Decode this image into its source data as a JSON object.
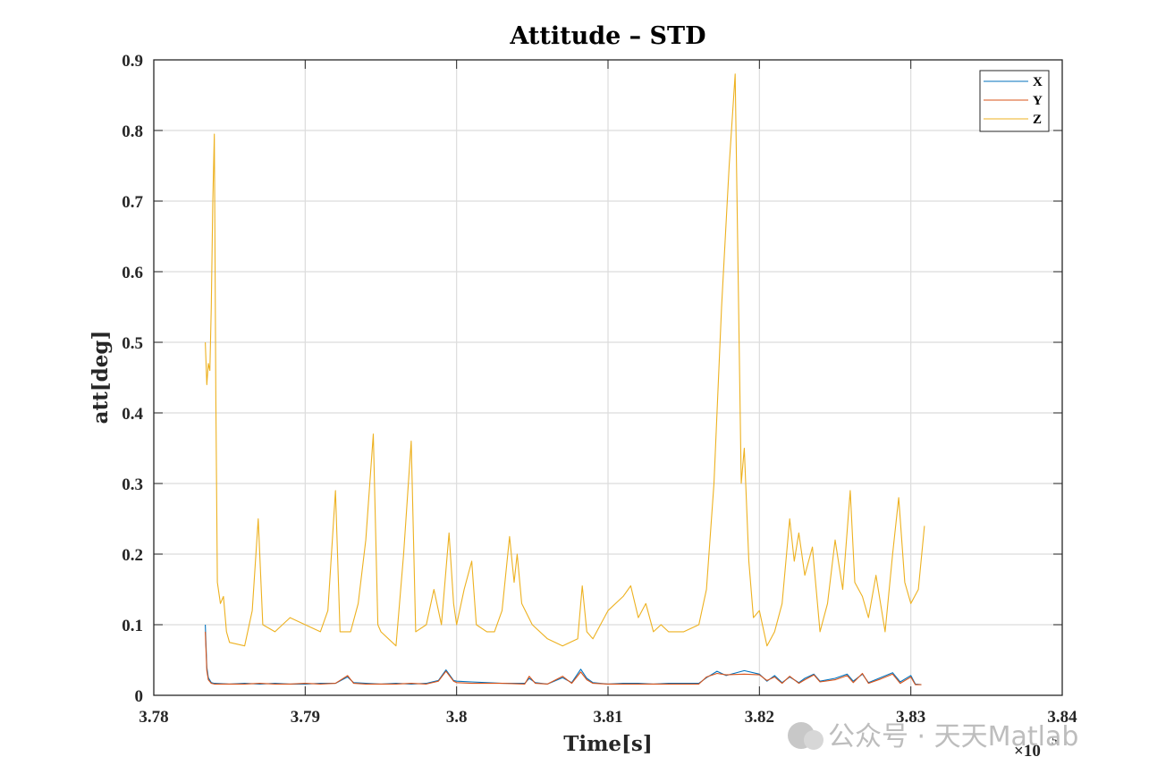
{
  "chart_data": {
    "type": "line",
    "title": "Attitude – STD",
    "xlabel": "Time[s]",
    "ylabel": "att[deg]",
    "x_exponent_label": "×10",
    "x_exponent_power": "5",
    "xlim": [
      3.78,
      3.84
    ],
    "ylim": [
      0,
      0.9
    ],
    "x_ticks": [
      "3.78",
      "3.79",
      "3.8",
      "3.81",
      "3.82",
      "3.83",
      "3.84"
    ],
    "y_ticks": [
      "0",
      "0.1",
      "0.2",
      "0.3",
      "0.4",
      "0.5",
      "0.6",
      "0.7",
      "0.8",
      "0.9"
    ],
    "grid": true,
    "legend_position": "top-right",
    "series": [
      {
        "name": "X",
        "color": "#0072BD",
        "points": [
          [
            3.7834,
            0.1
          ],
          [
            3.7835,
            0.04
          ],
          [
            3.7836,
            0.025
          ],
          [
            3.7838,
            0.018
          ],
          [
            3.784,
            0.017
          ],
          [
            3.785,
            0.016
          ],
          [
            3.786,
            0.017
          ],
          [
            3.787,
            0.016
          ],
          [
            3.788,
            0.017
          ],
          [
            3.789,
            0.016
          ],
          [
            3.79,
            0.016
          ],
          [
            3.791,
            0.017
          ],
          [
            3.792,
            0.017
          ],
          [
            3.7928,
            0.026
          ],
          [
            3.7932,
            0.018
          ],
          [
            3.794,
            0.017
          ],
          [
            3.795,
            0.016
          ],
          [
            3.796,
            0.017
          ],
          [
            3.797,
            0.016
          ],
          [
            3.798,
            0.017
          ],
          [
            3.7988,
            0.021
          ],
          [
            3.7993,
            0.036
          ],
          [
            3.7998,
            0.021
          ],
          [
            3.8,
            0.02
          ],
          [
            3.801,
            0.019
          ],
          [
            3.802,
            0.018
          ],
          [
            3.803,
            0.017
          ],
          [
            3.8045,
            0.017
          ],
          [
            3.8048,
            0.024
          ],
          [
            3.8052,
            0.018
          ],
          [
            3.806,
            0.016
          ],
          [
            3.807,
            0.025
          ],
          [
            3.8076,
            0.018
          ],
          [
            3.8082,
            0.037
          ],
          [
            3.8086,
            0.024
          ],
          [
            3.809,
            0.018
          ],
          [
            3.81,
            0.016
          ],
          [
            3.811,
            0.017
          ],
          [
            3.812,
            0.017
          ],
          [
            3.813,
            0.016
          ],
          [
            3.814,
            0.017
          ],
          [
            3.815,
            0.017
          ],
          [
            3.816,
            0.017
          ],
          [
            3.8165,
            0.025
          ],
          [
            3.8172,
            0.034
          ],
          [
            3.8178,
            0.028
          ],
          [
            3.819,
            0.035
          ],
          [
            3.82,
            0.03
          ],
          [
            3.8205,
            0.02
          ],
          [
            3.821,
            0.028
          ],
          [
            3.8215,
            0.018
          ],
          [
            3.822,
            0.026
          ],
          [
            3.8226,
            0.018
          ],
          [
            3.823,
            0.024
          ],
          [
            3.8236,
            0.03
          ],
          [
            3.824,
            0.02
          ],
          [
            3.825,
            0.024
          ],
          [
            3.8258,
            0.03
          ],
          [
            3.8262,
            0.02
          ],
          [
            3.8268,
            0.03
          ],
          [
            3.8272,
            0.018
          ],
          [
            3.828,
            0.025
          ],
          [
            3.8288,
            0.032
          ],
          [
            3.8293,
            0.019
          ],
          [
            3.83,
            0.028
          ],
          [
            3.8303,
            0.016
          ],
          [
            3.8307,
            0.015
          ]
        ]
      },
      {
        "name": "Y",
        "color": "#D95319",
        "points": [
          [
            3.7834,
            0.09
          ],
          [
            3.7835,
            0.035
          ],
          [
            3.7836,
            0.022
          ],
          [
            3.7838,
            0.017
          ],
          [
            3.784,
            0.016
          ],
          [
            3.785,
            0.016
          ],
          [
            3.786,
            0.016
          ],
          [
            3.787,
            0.017
          ],
          [
            3.788,
            0.016
          ],
          [
            3.789,
            0.016
          ],
          [
            3.79,
            0.017
          ],
          [
            3.791,
            0.016
          ],
          [
            3.792,
            0.017
          ],
          [
            3.7928,
            0.028
          ],
          [
            3.7932,
            0.017
          ],
          [
            3.794,
            0.016
          ],
          [
            3.795,
            0.016
          ],
          [
            3.796,
            0.016
          ],
          [
            3.797,
            0.017
          ],
          [
            3.798,
            0.016
          ],
          [
            3.7988,
            0.02
          ],
          [
            3.7993,
            0.034
          ],
          [
            3.7998,
            0.02
          ],
          [
            3.8,
            0.018
          ],
          [
            3.801,
            0.017
          ],
          [
            3.802,
            0.017
          ],
          [
            3.803,
            0.017
          ],
          [
            3.8045,
            0.016
          ],
          [
            3.8048,
            0.027
          ],
          [
            3.8052,
            0.017
          ],
          [
            3.806,
            0.016
          ],
          [
            3.807,
            0.027
          ],
          [
            3.8076,
            0.017
          ],
          [
            3.8082,
            0.033
          ],
          [
            3.8086,
            0.022
          ],
          [
            3.809,
            0.017
          ],
          [
            3.81,
            0.016
          ],
          [
            3.811,
            0.016
          ],
          [
            3.812,
            0.016
          ],
          [
            3.813,
            0.016
          ],
          [
            3.814,
            0.016
          ],
          [
            3.815,
            0.016
          ],
          [
            3.816,
            0.016
          ],
          [
            3.8165,
            0.026
          ],
          [
            3.8172,
            0.031
          ],
          [
            3.8178,
            0.029
          ],
          [
            3.819,
            0.03
          ],
          [
            3.82,
            0.029
          ],
          [
            3.8205,
            0.021
          ],
          [
            3.821,
            0.026
          ],
          [
            3.8215,
            0.017
          ],
          [
            3.822,
            0.027
          ],
          [
            3.8226,
            0.017
          ],
          [
            3.823,
            0.022
          ],
          [
            3.8236,
            0.029
          ],
          [
            3.824,
            0.019
          ],
          [
            3.825,
            0.022
          ],
          [
            3.8258,
            0.028
          ],
          [
            3.8262,
            0.018
          ],
          [
            3.8268,
            0.031
          ],
          [
            3.8272,
            0.017
          ],
          [
            3.828,
            0.023
          ],
          [
            3.8288,
            0.03
          ],
          [
            3.8293,
            0.017
          ],
          [
            3.83,
            0.026
          ],
          [
            3.8303,
            0.015
          ],
          [
            3.8307,
            0.015
          ]
        ]
      },
      {
        "name": "Z",
        "color": "#EDB120",
        "points": [
          [
            3.7834,
            0.5
          ],
          [
            3.7835,
            0.44
          ],
          [
            3.7836,
            0.47
          ],
          [
            3.7837,
            0.46
          ],
          [
            3.7838,
            0.55
          ],
          [
            3.7839,
            0.7
          ],
          [
            3.784,
            0.795
          ],
          [
            3.7841,
            0.42
          ],
          [
            3.7842,
            0.16
          ],
          [
            3.7844,
            0.13
          ],
          [
            3.7846,
            0.14
          ],
          [
            3.7848,
            0.09
          ],
          [
            3.785,
            0.075
          ],
          [
            3.786,
            0.07
          ],
          [
            3.7865,
            0.12
          ],
          [
            3.7869,
            0.25
          ],
          [
            3.7872,
            0.1
          ],
          [
            3.788,
            0.09
          ],
          [
            3.789,
            0.11
          ],
          [
            3.79,
            0.1
          ],
          [
            3.791,
            0.09
          ],
          [
            3.7915,
            0.12
          ],
          [
            3.792,
            0.29
          ],
          [
            3.7923,
            0.09
          ],
          [
            3.793,
            0.09
          ],
          [
            3.7935,
            0.13
          ],
          [
            3.794,
            0.22
          ],
          [
            3.7945,
            0.37
          ],
          [
            3.7948,
            0.1
          ],
          [
            3.795,
            0.09
          ],
          [
            3.796,
            0.07
          ],
          [
            3.7965,
            0.2
          ],
          [
            3.797,
            0.36
          ],
          [
            3.7973,
            0.09
          ],
          [
            3.798,
            0.1
          ],
          [
            3.7985,
            0.15
          ],
          [
            3.799,
            0.1
          ],
          [
            3.7995,
            0.23
          ],
          [
            3.7998,
            0.13
          ],
          [
            3.8,
            0.1
          ],
          [
            3.8005,
            0.15
          ],
          [
            3.801,
            0.19
          ],
          [
            3.8013,
            0.1
          ],
          [
            3.802,
            0.09
          ],
          [
            3.8025,
            0.09
          ],
          [
            3.803,
            0.12
          ],
          [
            3.8035,
            0.225
          ],
          [
            3.8038,
            0.16
          ],
          [
            3.804,
            0.2
          ],
          [
            3.8043,
            0.13
          ],
          [
            3.805,
            0.1
          ],
          [
            3.806,
            0.08
          ],
          [
            3.807,
            0.07
          ],
          [
            3.808,
            0.08
          ],
          [
            3.8083,
            0.155
          ],
          [
            3.8086,
            0.09
          ],
          [
            3.809,
            0.08
          ],
          [
            3.81,
            0.12
          ],
          [
            3.811,
            0.14
          ],
          [
            3.8115,
            0.155
          ],
          [
            3.812,
            0.11
          ],
          [
            3.8125,
            0.13
          ],
          [
            3.813,
            0.09
          ],
          [
            3.8135,
            0.1
          ],
          [
            3.814,
            0.09
          ],
          [
            3.815,
            0.09
          ],
          [
            3.816,
            0.1
          ],
          [
            3.8165,
            0.15
          ],
          [
            3.817,
            0.3
          ],
          [
            3.8175,
            0.55
          ],
          [
            3.818,
            0.75
          ],
          [
            3.8184,
            0.88
          ],
          [
            3.8188,
            0.3
          ],
          [
            3.819,
            0.35
          ],
          [
            3.8193,
            0.19
          ],
          [
            3.8196,
            0.11
          ],
          [
            3.82,
            0.12
          ],
          [
            3.8205,
            0.07
          ],
          [
            3.821,
            0.09
          ],
          [
            3.8215,
            0.13
          ],
          [
            3.822,
            0.25
          ],
          [
            3.8223,
            0.19
          ],
          [
            3.8226,
            0.23
          ],
          [
            3.823,
            0.17
          ],
          [
            3.8235,
            0.21
          ],
          [
            3.824,
            0.09
          ],
          [
            3.8245,
            0.13
          ],
          [
            3.825,
            0.22
          ],
          [
            3.8255,
            0.15
          ],
          [
            3.826,
            0.29
          ],
          [
            3.8263,
            0.16
          ],
          [
            3.8268,
            0.14
          ],
          [
            3.8272,
            0.11
          ],
          [
            3.8277,
            0.17
          ],
          [
            3.8283,
            0.09
          ],
          [
            3.8288,
            0.2
          ],
          [
            3.8292,
            0.28
          ],
          [
            3.8296,
            0.16
          ],
          [
            3.83,
            0.13
          ],
          [
            3.8305,
            0.15
          ],
          [
            3.8309,
            0.24
          ]
        ]
      }
    ],
    "watermark": "公众号 · 天天Matlab"
  }
}
